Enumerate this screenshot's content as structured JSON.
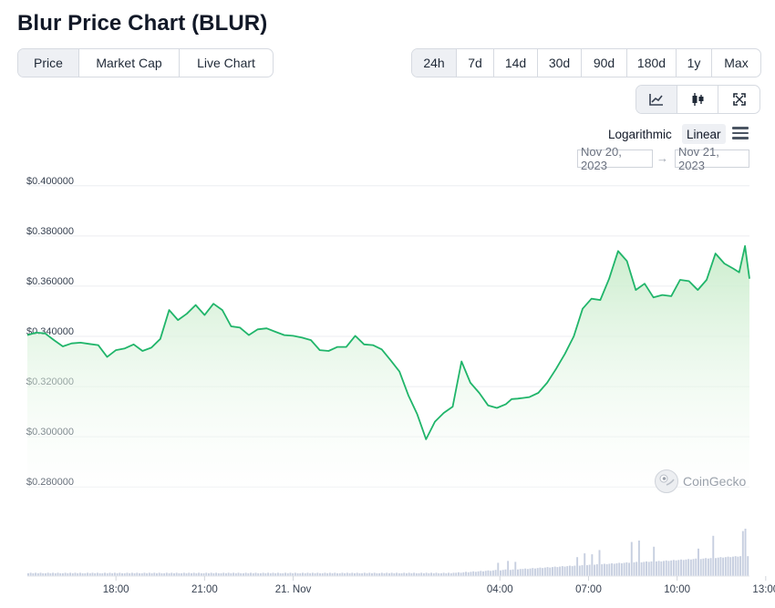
{
  "title": "Blur Price Chart (BLUR)",
  "metric_tabs": [
    "Price",
    "Market Cap",
    "Live Chart"
  ],
  "range_tabs": [
    "24h",
    "7d",
    "14d",
    "30d",
    "90d",
    "180d",
    "1y",
    "Max"
  ],
  "view_icons": [
    "line-chart-icon",
    "candlestick-icon",
    "expand-icon"
  ],
  "scale": {
    "logarithmic": "Logarithmic",
    "linear": "Linear"
  },
  "date_range": {
    "from": "Nov 20, 2023",
    "arrow": "→",
    "to": "Nov 21, 2023"
  },
  "watermark": "CoinGecko",
  "colors": {
    "line": "#20b56a",
    "fill_top": "#c8ecca",
    "volume": "#c7cfe0",
    "active_tab": "#eef0f4"
  },
  "chart_data": {
    "type": "area",
    "title": "",
    "xlabel": "",
    "ylabel": "",
    "ylim": [
      0.275,
      0.405
    ],
    "y_ticks": [
      "$0.400000",
      "$0.380000",
      "$0.360000",
      "$0.340000",
      "$0.320000",
      "$0.300000",
      "$0.280000"
    ],
    "y_tick_values": [
      0.4,
      0.38,
      0.36,
      0.34,
      0.32,
      0.3,
      0.28
    ],
    "x_ticks": [
      "18:00",
      "21:00",
      "21. Nov",
      "04:00",
      "07:00",
      "10:00",
      "13:00"
    ],
    "x_tick_hours": [
      3,
      6,
      9,
      16,
      19,
      22,
      25
    ],
    "x_start": "Nov 20, 2023 15:00",
    "x_range_hours": [
      0,
      24.45
    ],
    "grid": true,
    "series": [
      {
        "hours": [
          0.0,
          0.3,
          0.6,
          0.9,
          1.2,
          1.5,
          1.8,
          2.1,
          2.4,
          2.7,
          3.0,
          3.3,
          3.6,
          3.9,
          4.2,
          4.5,
          4.8,
          5.1,
          5.4,
          5.7,
          6.0,
          6.3,
          6.6,
          6.9,
          7.2,
          7.5,
          7.8,
          8.1,
          8.4,
          8.7,
          9.0,
          9.3,
          9.6,
          9.9,
          10.2,
          10.5,
          10.8,
          11.1,
          11.4,
          11.7,
          12.0,
          12.3,
          12.6,
          12.9,
          13.2,
          13.5,
          13.8,
          14.1,
          14.4,
          14.7,
          15.0,
          15.3,
          15.6,
          15.9,
          16.2,
          16.4,
          16.6,
          16.8,
          17.0,
          17.3,
          17.6,
          17.9,
          18.2,
          18.5,
          18.8,
          19.1,
          19.4,
          19.7,
          20.0,
          20.3,
          20.6,
          20.9,
          21.2,
          21.5,
          21.8,
          22.1,
          22.4,
          22.7,
          23.0,
          23.3,
          23.6,
          23.9,
          24.1,
          24.3,
          24.45
        ],
        "values": [
          0.3405,
          0.3415,
          0.3412,
          0.3385,
          0.336,
          0.3372,
          0.3375,
          0.337,
          0.3365,
          0.3318,
          0.3345,
          0.3352,
          0.3368,
          0.3342,
          0.3355,
          0.339,
          0.3505,
          0.3465,
          0.349,
          0.3525,
          0.3485,
          0.353,
          0.3505,
          0.344,
          0.3435,
          0.3405,
          0.3428,
          0.3432,
          0.3418,
          0.3405,
          0.3402,
          0.3395,
          0.3385,
          0.3345,
          0.3342,
          0.3358,
          0.3358,
          0.3402,
          0.3368,
          0.3365,
          0.3348,
          0.3305,
          0.326,
          0.3165,
          0.309,
          0.299,
          0.306,
          0.3095,
          0.312,
          0.33,
          0.3215,
          0.3175,
          0.3125,
          0.3115,
          0.313,
          0.315,
          0.3152,
          0.3155,
          0.3158,
          0.3175,
          0.3215,
          0.327,
          0.333,
          0.34,
          0.351,
          0.355,
          0.3545,
          0.363,
          0.374,
          0.37,
          0.3585,
          0.361,
          0.3555,
          0.3565,
          0.356,
          0.3625,
          0.362,
          0.3585,
          0.3625,
          0.373,
          0.369,
          0.367,
          0.3655,
          0.376,
          0.363
        ]
      }
    ],
    "volume_bars": [
      0.06,
      0.07,
      0.06,
      0.07,
      0.06,
      0.07,
      0.06,
      0.06,
      0.07,
      0.06,
      0.07,
      0.06,
      0.07,
      0.06,
      0.06,
      0.07,
      0.06,
      0.07,
      0.06,
      0.07,
      0.06,
      0.07,
      0.06,
      0.06,
      0.07,
      0.06,
      0.07,
      0.06,
      0.07,
      0.06,
      0.06,
      0.07,
      0.06,
      0.07,
      0.06,
      0.07,
      0.06,
      0.07,
      0.06,
      0.06,
      0.07,
      0.06,
      0.07,
      0.06,
      0.07,
      0.06,
      0.06,
      0.07,
      0.06,
      0.07,
      0.06,
      0.07,
      0.06,
      0.07,
      0.06,
      0.06,
      0.07,
      0.06,
      0.07,
      0.06,
      0.07,
      0.06,
      0.06,
      0.07,
      0.06,
      0.07,
      0.06,
      0.07,
      0.06,
      0.07,
      0.06,
      0.06,
      0.07,
      0.06,
      0.07,
      0.06,
      0.07,
      0.06,
      0.06,
      0.07,
      0.06,
      0.07,
      0.06,
      0.07,
      0.06,
      0.07,
      0.06,
      0.06,
      0.07,
      0.06,
      0.07,
      0.06,
      0.07,
      0.06,
      0.06,
      0.07,
      0.06,
      0.07,
      0.06,
      0.07,
      0.06,
      0.07,
      0.06,
      0.06,
      0.07,
      0.06,
      0.07,
      0.06,
      0.07,
      0.06,
      0.06,
      0.07,
      0.06,
      0.07,
      0.06,
      0.07,
      0.06,
      0.07,
      0.06,
      0.06,
      0.07,
      0.06,
      0.07,
      0.06,
      0.07,
      0.06,
      0.06,
      0.07,
      0.06,
      0.07,
      0.06,
      0.07,
      0.06,
      0.07,
      0.06,
      0.06,
      0.07,
      0.06,
      0.07,
      0.06,
      0.07,
      0.06,
      0.06,
      0.07,
      0.06,
      0.07,
      0.06,
      0.07,
      0.06,
      0.07,
      0.06,
      0.06,
      0.07,
      0.06,
      0.07,
      0.06,
      0.07,
      0.06,
      0.06,
      0.07,
      0.06,
      0.07,
      0.06,
      0.07,
      0.06,
      0.07,
      0.06,
      0.06,
      0.07,
      0.06,
      0.07,
      0.06,
      0.07,
      0.07,
      0.08,
      0.07,
      0.08,
      0.09,
      0.08,
      0.09,
      0.1,
      0.09,
      0.1,
      0.11,
      0.1,
      0.11,
      0.12,
      0.11,
      0.12,
      0.13,
      0.28,
      0.12,
      0.13,
      0.14,
      0.32,
      0.13,
      0.14,
      0.3,
      0.14,
      0.15,
      0.15,
      0.16,
      0.15,
      0.16,
      0.17,
      0.16,
      0.17,
      0.18,
      0.17,
      0.18,
      0.19,
      0.18,
      0.19,
      0.2,
      0.19,
      0.2,
      0.21,
      0.2,
      0.21,
      0.22,
      0.21,
      0.22,
      0.4,
      0.22,
      0.23,
      0.48,
      0.23,
      0.24,
      0.46,
      0.24,
      0.25,
      0.55,
      0.25,
      0.26,
      0.25,
      0.26,
      0.27,
      0.26,
      0.27,
      0.28,
      0.27,
      0.28,
      0.29,
      0.28,
      0.72,
      0.29,
      0.3,
      0.75,
      0.29,
      0.3,
      0.31,
      0.3,
      0.31,
      0.62,
      0.31,
      0.32,
      0.31,
      0.32,
      0.33,
      0.32,
      0.33,
      0.34,
      0.33,
      0.34,
      0.35,
      0.34,
      0.35,
      0.36,
      0.35,
      0.36,
      0.37,
      0.58,
      0.36,
      0.37,
      0.38,
      0.37,
      0.38,
      0.85,
      0.38,
      0.39,
      0.4,
      0.39,
      0.4,
      0.41,
      0.4,
      0.41,
      0.42,
      0.41,
      0.42,
      0.95,
      1.0,
      0.42
    ]
  }
}
